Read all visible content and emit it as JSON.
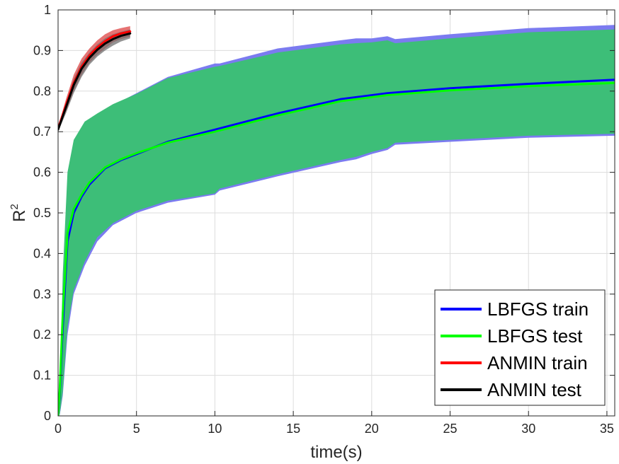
{
  "chart_data": {
    "type": "line",
    "title": "",
    "xlabel": "time(s)",
    "ylabel_main": "R",
    "ylabel_sup": "2",
    "xlim": [
      0,
      35.5
    ],
    "ylim": [
      0,
      1
    ],
    "xticks": [
      0,
      5,
      10,
      15,
      20,
      25,
      30,
      35
    ],
    "xtick_labels": [
      "0",
      "5",
      "10",
      "15",
      "20",
      "25",
      "30",
      "35"
    ],
    "yticks": [
      0,
      0.1,
      0.2,
      0.3,
      0.4,
      0.5,
      0.6,
      0.7,
      0.8,
      0.9,
      1
    ],
    "ytick_labels": [
      "0",
      "0.1",
      "0.2",
      "0.3",
      "0.4",
      "0.5",
      "0.6",
      "0.7",
      "0.8",
      "0.9",
      "1"
    ],
    "grid": true,
    "legend_position": "bottom-right",
    "bands": [
      {
        "name": "LBFGS train band",
        "color": "#7B7BF0",
        "opacity": 1,
        "points": [
          [
            0.1,
            0,
            0.02
          ],
          [
            0.3,
            0.05,
            0.25
          ],
          [
            0.6,
            0.2,
            0.5
          ],
          [
            1,
            0.3,
            0.62
          ],
          [
            1.7,
            0.37,
            0.71
          ],
          [
            2.5,
            0.43,
            0.74
          ],
          [
            3.5,
            0.47,
            0.765
          ],
          [
            5,
            0.5,
            0.795
          ],
          [
            7,
            0.525,
            0.835
          ],
          [
            10,
            0.545,
            0.868
          ],
          [
            10.3,
            0.555,
            0.868
          ],
          [
            14,
            0.59,
            0.905
          ],
          [
            18,
            0.625,
            0.925
          ],
          [
            19,
            0.632,
            0.93
          ],
          [
            20,
            0.645,
            0.93
          ],
          [
            21,
            0.655,
            0.935
          ],
          [
            21.5,
            0.668,
            0.928
          ],
          [
            25,
            0.675,
            0.94
          ],
          [
            30,
            0.685,
            0.955
          ],
          [
            35.5,
            0.69,
            0.963
          ]
        ]
      },
      {
        "name": "LBFGS test band",
        "color": "#3DBE78",
        "opacity": 1,
        "points": [
          [
            0.1,
            0,
            0.03
          ],
          [
            0.3,
            0.06,
            0.35
          ],
          [
            0.6,
            0.22,
            0.6
          ],
          [
            1,
            0.31,
            0.68
          ],
          [
            1.7,
            0.38,
            0.725
          ],
          [
            2.5,
            0.44,
            0.745
          ],
          [
            3.5,
            0.475,
            0.768
          ],
          [
            5,
            0.505,
            0.793
          ],
          [
            7,
            0.53,
            0.832
          ],
          [
            10,
            0.548,
            0.86
          ],
          [
            10.3,
            0.56,
            0.862
          ],
          [
            14,
            0.595,
            0.895
          ],
          [
            18,
            0.63,
            0.915
          ],
          [
            19,
            0.638,
            0.918
          ],
          [
            20,
            0.65,
            0.92
          ],
          [
            21,
            0.66,
            0.925
          ],
          [
            21.5,
            0.673,
            0.918
          ],
          [
            25,
            0.68,
            0.93
          ],
          [
            30,
            0.69,
            0.945
          ],
          [
            35.5,
            0.695,
            0.952
          ]
        ]
      },
      {
        "name": "ANMIN train band",
        "color": "#E05050",
        "opacity": 0.8,
        "points": [
          [
            0,
            0.705,
            0.712
          ],
          [
            0.5,
            0.75,
            0.78
          ],
          [
            1,
            0.8,
            0.84
          ],
          [
            1.5,
            0.84,
            0.88
          ],
          [
            2,
            0.87,
            0.905
          ],
          [
            2.5,
            0.89,
            0.925
          ],
          [
            3,
            0.905,
            0.94
          ],
          [
            3.5,
            0.92,
            0.95
          ],
          [
            4,
            0.928,
            0.955
          ],
          [
            4.6,
            0.934,
            0.96
          ]
        ]
      },
      {
        "name": "ANMIN test band",
        "color": "#707070",
        "opacity": 0.75,
        "points": [
          [
            0,
            0.7,
            0.71
          ],
          [
            0.5,
            0.745,
            0.77
          ],
          [
            1,
            0.795,
            0.83
          ],
          [
            1.5,
            0.835,
            0.87
          ],
          [
            2,
            0.865,
            0.895
          ],
          [
            2.5,
            0.885,
            0.915
          ],
          [
            3,
            0.9,
            0.93
          ],
          [
            3.5,
            0.912,
            0.94
          ],
          [
            4,
            0.922,
            0.946
          ],
          [
            4.6,
            0.93,
            0.952
          ]
        ]
      }
    ],
    "series": [
      {
        "name": "LBFGS train",
        "color": "#0000FF",
        "x": [
          0,
          0.1,
          0.3,
          0.6,
          1,
          1.5,
          2,
          3,
          4,
          5,
          7,
          10,
          14,
          18,
          21,
          25,
          30,
          35.5
        ],
        "y": [
          0,
          0.05,
          0.22,
          0.43,
          0.5,
          0.54,
          0.57,
          0.61,
          0.63,
          0.645,
          0.675,
          0.705,
          0.745,
          0.78,
          0.795,
          0.807,
          0.818,
          0.828
        ]
      },
      {
        "name": "LBFGS test",
        "color": "#00FF00",
        "x": [
          0,
          0.1,
          0.3,
          0.6,
          1,
          1.5,
          2,
          3,
          4,
          5,
          7,
          10,
          14,
          18,
          21,
          25,
          30,
          35.5
        ],
        "y": [
          0,
          0.06,
          0.25,
          0.45,
          0.51,
          0.545,
          0.575,
          0.612,
          0.632,
          0.647,
          0.673,
          0.7,
          0.74,
          0.775,
          0.79,
          0.802,
          0.812,
          0.82
        ]
      },
      {
        "name": "ANMIN train",
        "color": "#FF0000",
        "x": [
          0,
          0.5,
          1,
          1.5,
          2,
          2.5,
          3,
          3.5,
          4,
          4.6
        ],
        "y": [
          0.708,
          0.765,
          0.82,
          0.86,
          0.888,
          0.908,
          0.923,
          0.935,
          0.942,
          0.947
        ]
      },
      {
        "name": "ANMIN test",
        "color": "#000000",
        "x": [
          0,
          0.5,
          1,
          1.5,
          2,
          2.5,
          3,
          3.5,
          4,
          4.6
        ],
        "y": [
          0.705,
          0.76,
          0.815,
          0.855,
          0.882,
          0.902,
          0.917,
          0.928,
          0.936,
          0.942
        ]
      }
    ]
  }
}
